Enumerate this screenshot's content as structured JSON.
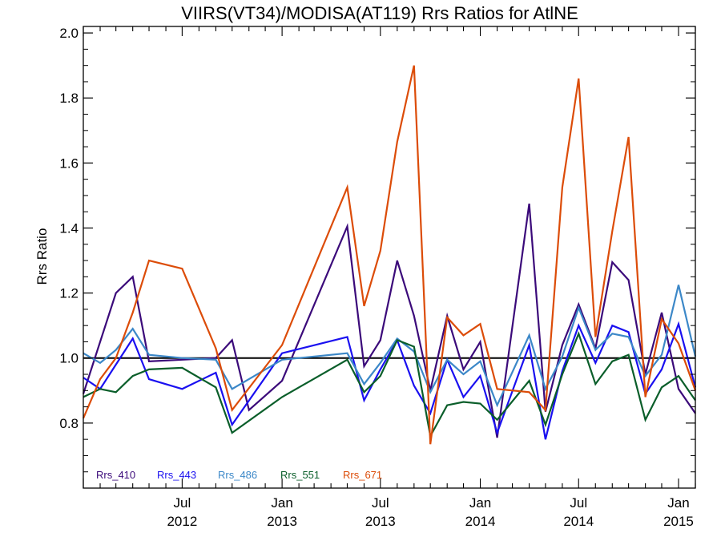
{
  "chart_data": {
    "type": "line",
    "title": "VIIRS(VT34)/MODISA(AT119)  Rrs Ratios for AtlNE",
    "xlabel": "",
    "ylabel": "Rrs Ratio",
    "ylim": [
      0.6,
      2.02
    ],
    "xlim": [
      "2012-01-01",
      "2015-02-01"
    ],
    "y_ticks": [
      "0.8",
      "1.0",
      "1.2",
      "1.4",
      "1.6",
      "1.8",
      "2.0"
    ],
    "x_ticks": [
      {
        "date": "2012-07-01",
        "line1": "Jul",
        "line2": "2012"
      },
      {
        "date": "2013-01-01",
        "line1": "Jan",
        "line2": "2013"
      },
      {
        "date": "2013-07-01",
        "line1": "Jul",
        "line2": "2013"
      },
      {
        "date": "2014-01-01",
        "line1": "Jan",
        "line2": "2014"
      },
      {
        "date": "2014-07-01",
        "line1": "Jul",
        "line2": "2014"
      },
      {
        "date": "2015-01-01",
        "line1": "Jan",
        "line2": "2015"
      }
    ],
    "reference_line": 1.0,
    "grid": false,
    "legend_position": "bottom-left",
    "series": [
      {
        "name": "Rrs_410",
        "color": "#3b0a7a",
        "points": [
          [
            "2012-01-01",
            0.89
          ],
          [
            "2012-03-01",
            1.2
          ],
          [
            "2012-04-01",
            1.25
          ],
          [
            "2012-05-01",
            0.99
          ],
          [
            "2012-07-01",
            0.995
          ],
          [
            "2012-09-01",
            1.0
          ],
          [
            "2012-10-01",
            1.055
          ],
          [
            "2012-11-01",
            0.84
          ],
          [
            "2013-01-01",
            0.93
          ],
          [
            "2013-05-01",
            1.405
          ],
          [
            "2013-06-01",
            0.975
          ],
          [
            "2013-07-01",
            1.055
          ],
          [
            "2013-08-01",
            1.3
          ],
          [
            "2013-09-01",
            1.13
          ],
          [
            "2013-10-01",
            0.9
          ],
          [
            "2013-11-01",
            1.13
          ],
          [
            "2013-12-01",
            0.965
          ],
          [
            "2014-01-01",
            1.05
          ],
          [
            "2014-02-01",
            0.755
          ],
          [
            "2014-04-01",
            1.475
          ],
          [
            "2014-05-01",
            0.835
          ],
          [
            "2014-06-01",
            1.04
          ],
          [
            "2014-07-01",
            1.165
          ],
          [
            "2014-08-01",
            1.03
          ],
          [
            "2014-09-01",
            1.295
          ],
          [
            "2014-10-01",
            1.24
          ],
          [
            "2014-11-01",
            0.95
          ],
          [
            "2014-12-01",
            1.14
          ],
          [
            "2015-01-01",
            0.905
          ],
          [
            "2015-02-01",
            0.83
          ]
        ]
      },
      {
        "name": "Rrs_443",
        "color": "#1a10f0",
        "points": [
          [
            "2012-01-01",
            0.94
          ],
          [
            "2012-02-01",
            0.905
          ],
          [
            "2012-03-01",
            0.98
          ],
          [
            "2012-04-01",
            1.06
          ],
          [
            "2012-05-01",
            0.935
          ],
          [
            "2012-07-01",
            0.905
          ],
          [
            "2012-09-01",
            0.955
          ],
          [
            "2012-10-01",
            0.795
          ],
          [
            "2013-01-01",
            1.015
          ],
          [
            "2013-05-01",
            1.065
          ],
          [
            "2013-06-01",
            0.87
          ],
          [
            "2013-07-01",
            0.965
          ],
          [
            "2013-08-01",
            1.055
          ],
          [
            "2013-09-01",
            0.915
          ],
          [
            "2013-10-01",
            0.83
          ],
          [
            "2013-11-01",
            0.995
          ],
          [
            "2013-12-01",
            0.88
          ],
          [
            "2014-01-01",
            0.945
          ],
          [
            "2014-02-01",
            0.77
          ],
          [
            "2014-04-01",
            1.04
          ],
          [
            "2014-05-01",
            0.75
          ],
          [
            "2014-06-01",
            0.96
          ],
          [
            "2014-07-01",
            1.1
          ],
          [
            "2014-08-01",
            0.985
          ],
          [
            "2014-09-01",
            1.1
          ],
          [
            "2014-10-01",
            1.08
          ],
          [
            "2014-11-01",
            0.89
          ],
          [
            "2014-12-01",
            0.965
          ],
          [
            "2015-01-01",
            1.105
          ],
          [
            "2015-02-01",
            0.91
          ]
        ]
      },
      {
        "name": "Rrs_486",
        "color": "#3c88c8",
        "points": [
          [
            "2012-01-01",
            1.015
          ],
          [
            "2012-02-01",
            0.985
          ],
          [
            "2012-03-01",
            1.025
          ],
          [
            "2012-04-01",
            1.09
          ],
          [
            "2012-05-01",
            1.01
          ],
          [
            "2012-07-01",
            1.0
          ],
          [
            "2012-09-01",
            0.995
          ],
          [
            "2012-10-01",
            0.905
          ],
          [
            "2013-01-01",
            0.995
          ],
          [
            "2013-05-01",
            1.015
          ],
          [
            "2013-06-01",
            0.92
          ],
          [
            "2013-07-01",
            0.985
          ],
          [
            "2013-08-01",
            1.06
          ],
          [
            "2013-09-01",
            1.02
          ],
          [
            "2013-10-01",
            0.895
          ],
          [
            "2013-11-01",
            0.995
          ],
          [
            "2013-12-01",
            0.95
          ],
          [
            "2014-01-01",
            0.99
          ],
          [
            "2014-02-01",
            0.855
          ],
          [
            "2014-04-01",
            1.07
          ],
          [
            "2014-05-01",
            0.905
          ],
          [
            "2014-06-01",
            1.005
          ],
          [
            "2014-07-01",
            1.155
          ],
          [
            "2014-08-01",
            1.025
          ],
          [
            "2014-09-01",
            1.075
          ],
          [
            "2014-10-01",
            1.065
          ],
          [
            "2014-11-01",
            0.945
          ],
          [
            "2014-12-01",
            1.01
          ],
          [
            "2015-01-01",
            1.225
          ],
          [
            "2015-02-01",
            1.005
          ]
        ]
      },
      {
        "name": "Rrs_551",
        "color": "#0a5e2a",
        "points": [
          [
            "2012-01-01",
            0.88
          ],
          [
            "2012-02-01",
            0.905
          ],
          [
            "2012-03-01",
            0.895
          ],
          [
            "2012-04-01",
            0.945
          ],
          [
            "2012-05-01",
            0.965
          ],
          [
            "2012-07-01",
            0.97
          ],
          [
            "2012-09-01",
            0.91
          ],
          [
            "2012-10-01",
            0.77
          ],
          [
            "2013-01-01",
            0.88
          ],
          [
            "2013-05-01",
            0.995
          ],
          [
            "2013-06-01",
            0.895
          ],
          [
            "2013-07-01",
            0.945
          ],
          [
            "2013-08-01",
            1.055
          ],
          [
            "2013-09-01",
            1.035
          ],
          [
            "2013-10-01",
            0.76
          ],
          [
            "2013-11-01",
            0.855
          ],
          [
            "2013-12-01",
            0.865
          ],
          [
            "2014-01-01",
            0.86
          ],
          [
            "2014-02-01",
            0.81
          ],
          [
            "2014-04-01",
            0.93
          ],
          [
            "2014-05-01",
            0.795
          ],
          [
            "2014-06-01",
            0.95
          ],
          [
            "2014-07-01",
            1.075
          ],
          [
            "2014-08-01",
            0.92
          ],
          [
            "2014-09-01",
            0.99
          ],
          [
            "2014-10-01",
            1.01
          ],
          [
            "2014-11-01",
            0.81
          ],
          [
            "2014-12-01",
            0.91
          ],
          [
            "2015-01-01",
            0.945
          ],
          [
            "2015-02-01",
            0.87
          ]
        ]
      },
      {
        "name": "Rrs_671",
        "color": "#dc4c08",
        "points": [
          [
            "2012-01-01",
            0.815
          ],
          [
            "2012-02-01",
            0.935
          ],
          [
            "2012-03-01",
            1.0
          ],
          [
            "2012-04-01",
            1.14
          ],
          [
            "2012-05-01",
            1.3
          ],
          [
            "2012-07-01",
            1.275
          ],
          [
            "2012-09-01",
            1.03
          ],
          [
            "2012-10-01",
            0.84
          ],
          [
            "2013-01-01",
            1.04
          ],
          [
            "2013-05-01",
            1.525
          ],
          [
            "2013-06-01",
            1.16
          ],
          [
            "2013-07-01",
            1.33
          ],
          [
            "2013-08-01",
            1.665
          ],
          [
            "2013-09-01",
            1.9
          ],
          [
            "2013-10-01",
            0.735
          ],
          [
            "2013-11-01",
            1.125
          ],
          [
            "2013-12-01",
            1.07
          ],
          [
            "2014-01-01",
            1.105
          ],
          [
            "2014-02-01",
            0.905
          ],
          [
            "2014-04-01",
            0.895
          ],
          [
            "2014-05-01",
            0.84
          ],
          [
            "2014-06-01",
            1.525
          ],
          [
            "2014-07-01",
            1.86
          ],
          [
            "2014-08-01",
            1.065
          ],
          [
            "2014-09-01",
            1.39
          ],
          [
            "2014-10-01",
            1.68
          ],
          [
            "2014-11-01",
            0.88
          ],
          [
            "2014-12-01",
            1.12
          ],
          [
            "2015-01-01",
            1.045
          ],
          [
            "2015-02-01",
            0.9
          ]
        ]
      }
    ]
  }
}
